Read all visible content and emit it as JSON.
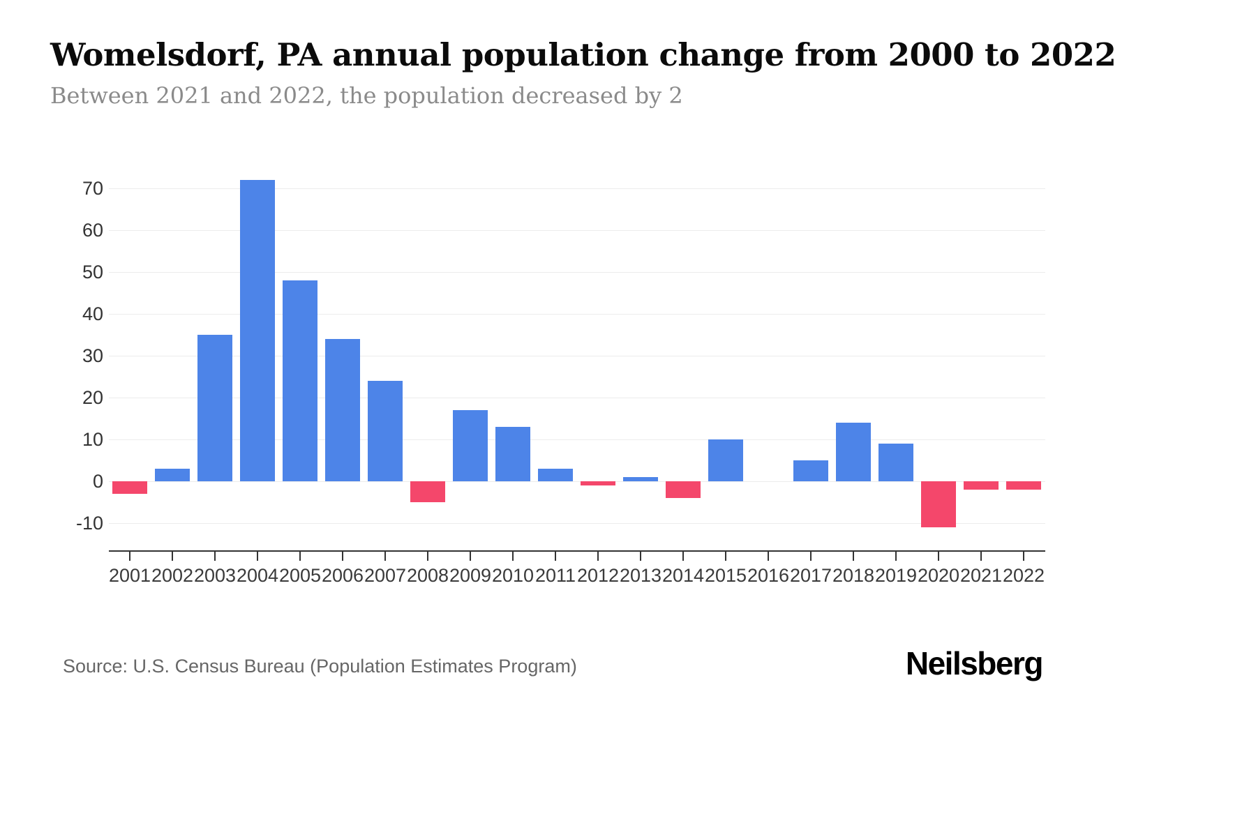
{
  "header": {
    "title": "Womelsdorf, PA annual population change from 2000 to 2022",
    "subtitle": "Between 2021 and 2022, the population decreased by 2"
  },
  "footer": {
    "source": "Source: U.S. Census Bureau (Population Estimates Program)",
    "brand": "Neilsberg"
  },
  "chart_data": {
    "type": "bar",
    "title": "Womelsdorf, PA annual population change from 2000 to 2022",
    "xlabel": "",
    "ylabel": "",
    "categories": [
      "2001",
      "2002",
      "2003",
      "2004",
      "2005",
      "2006",
      "2007",
      "2008",
      "2009",
      "2010",
      "2011",
      "2012",
      "2013",
      "2014",
      "2015",
      "2016",
      "2017",
      "2018",
      "2019",
      "2020",
      "2021",
      "2022"
    ],
    "values": [
      -3,
      3,
      35,
      72,
      48,
      34,
      24,
      -5,
      17,
      13,
      3,
      -1,
      1,
      -4,
      10,
      0,
      5,
      14,
      9,
      -11,
      -2,
      -2
    ],
    "yticks": [
      -10,
      0,
      10,
      20,
      30,
      40,
      50,
      60,
      70
    ],
    "ylim": [
      -16,
      74
    ],
    "grid": true,
    "legend": false,
    "colors": {
      "positive": "#4d84e8",
      "negative": "#f4476b",
      "grid_line": "#ececec",
      "axis": "#333333"
    }
  }
}
